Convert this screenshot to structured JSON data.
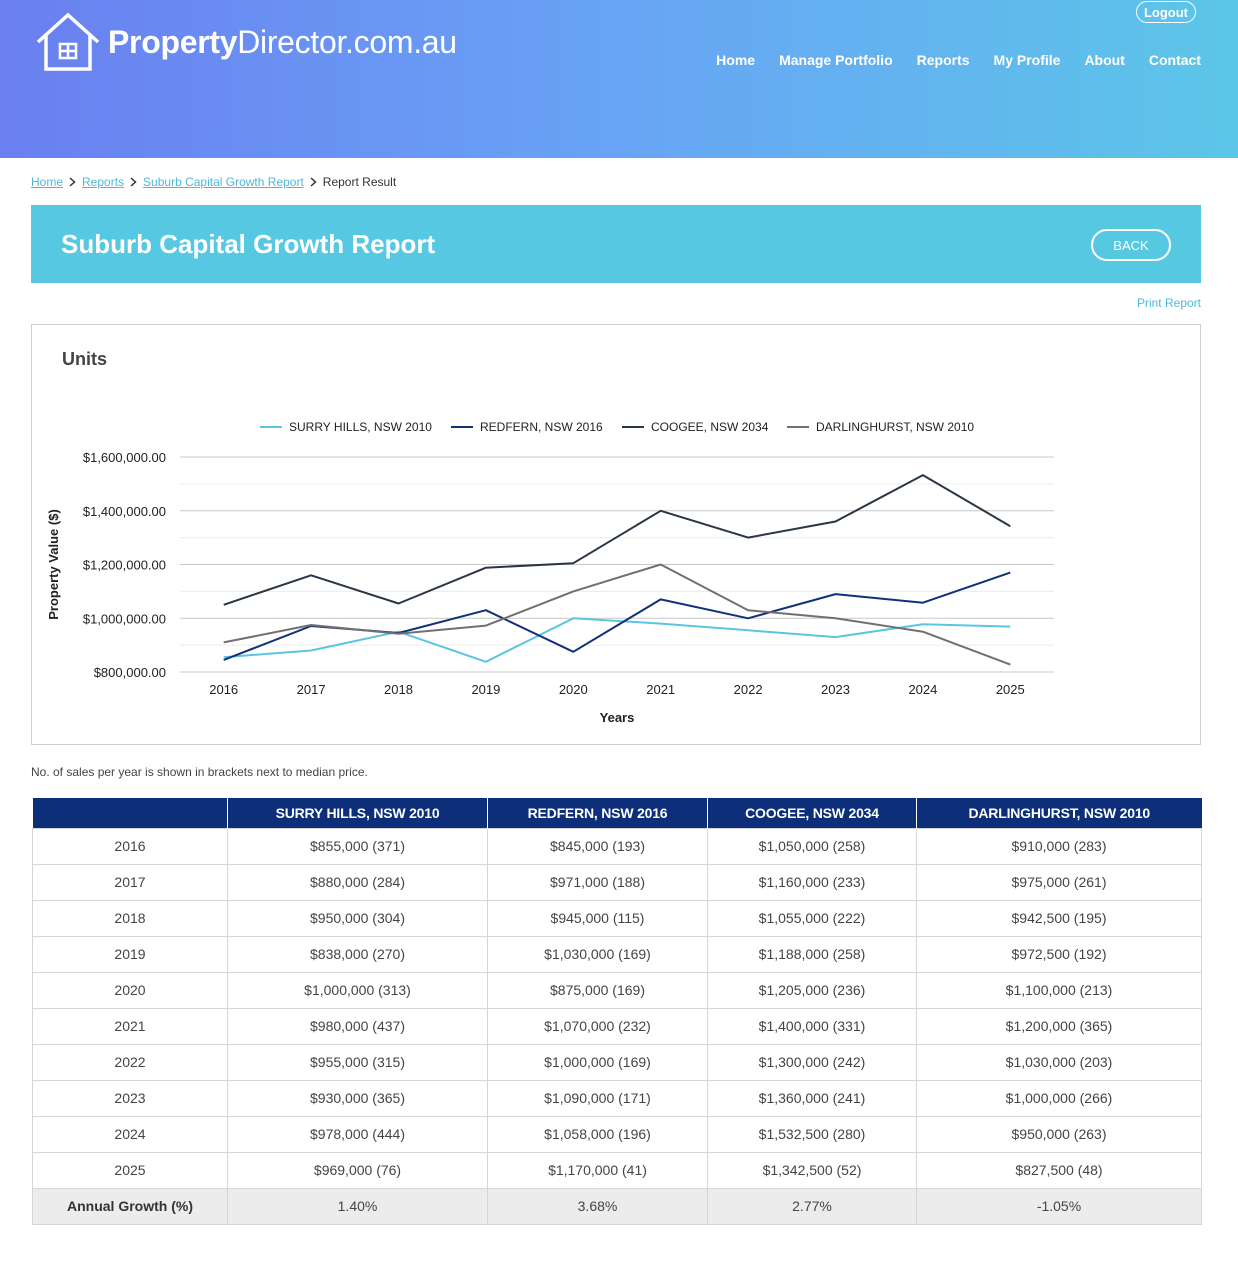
{
  "header": {
    "logo_bold": "Property",
    "logo_rest": "Director.com.au",
    "logout": "Logout",
    "nav": [
      "Home",
      "Manage Portfolio",
      "Reports",
      "My Profile",
      "About",
      "Contact"
    ]
  },
  "breadcrumb": {
    "items": [
      "Home",
      "Reports",
      "Suburb Capital Growth Report"
    ],
    "current": "Report Result"
  },
  "banner": {
    "title": "Suburb Capital Growth Report",
    "back": "BACK"
  },
  "print_report": "Print Report",
  "chart_section_title": "Units",
  "note": "No. of sales per year is shown in brackets next to median price.",
  "colors": {
    "surry": "#5bc5e0",
    "redfern": "#12307a",
    "coogee": "#2a3545",
    "darlinghurst": "#707070",
    "header_bg": "#0d2e78",
    "banner": "#56c8e2"
  },
  "chart_data": {
    "type": "line",
    "x": [
      2016,
      2017,
      2018,
      2019,
      2020,
      2021,
      2022,
      2023,
      2024,
      2025
    ],
    "xlabel": "Years",
    "ylabel": "Property Value ($)",
    "ylim": [
      800000,
      1600000
    ],
    "yticks": [
      "$1,600,000.00",
      "$1,400,000.00",
      "$1,200,000.00",
      "$1,000,000.00",
      "$800,000.00"
    ],
    "grid": true,
    "legend": "top",
    "series": [
      {
        "name": "SURRY HILLS, NSW 2010",
        "color": "#5bc5e0",
        "values": [
          855000,
          880000,
          950000,
          838000,
          1000000,
          980000,
          955000,
          930000,
          978000,
          969000
        ]
      },
      {
        "name": "REDFERN, NSW 2016",
        "color": "#12307a",
        "values": [
          845000,
          971000,
          945000,
          1030000,
          875000,
          1070000,
          1000000,
          1090000,
          1058000,
          1170000
        ]
      },
      {
        "name": "COOGEE, NSW 2034",
        "color": "#2a3545",
        "values": [
          1050000,
          1160000,
          1055000,
          1188000,
          1205000,
          1400000,
          1300000,
          1360000,
          1532500,
          1342500
        ]
      },
      {
        "name": "DARLINGHURST, NSW 2010",
        "color": "#707070",
        "values": [
          910000,
          975000,
          942500,
          972500,
          1100000,
          1200000,
          1030000,
          1000000,
          950000,
          827500
        ]
      }
    ]
  },
  "table": {
    "headers": [
      "",
      "SURRY HILLS, NSW 2010",
      "REDFERN, NSW 2016",
      "COOGEE, NSW 2034",
      "DARLINGHURST, NSW 2010"
    ],
    "rows": [
      [
        "2016",
        "$855,000 (371)",
        "$845,000 (193)",
        "$1,050,000 (258)",
        "$910,000 (283)"
      ],
      [
        "2017",
        "$880,000 (284)",
        "$971,000 (188)",
        "$1,160,000 (233)",
        "$975,000 (261)"
      ],
      [
        "2018",
        "$950,000 (304)",
        "$945,000 (115)",
        "$1,055,000 (222)",
        "$942,500 (195)"
      ],
      [
        "2019",
        "$838,000 (270)",
        "$1,030,000 (169)",
        "$1,188,000 (258)",
        "$972,500 (192)"
      ],
      [
        "2020",
        "$1,000,000 (313)",
        "$875,000 (169)",
        "$1,205,000 (236)",
        "$1,100,000 (213)"
      ],
      [
        "2021",
        "$980,000 (437)",
        "$1,070,000 (232)",
        "$1,400,000 (331)",
        "$1,200,000 (365)"
      ],
      [
        "2022",
        "$955,000 (315)",
        "$1,000,000 (169)",
        "$1,300,000 (242)",
        "$1,030,000 (203)"
      ],
      [
        "2023",
        "$930,000 (365)",
        "$1,090,000 (171)",
        "$1,360,000 (241)",
        "$1,000,000 (266)"
      ],
      [
        "2024",
        "$978,000 (444)",
        "$1,058,000 (196)",
        "$1,532,500 (280)",
        "$950,000 (263)"
      ],
      [
        "2025",
        "$969,000 (76)",
        "$1,170,000 (41)",
        "$1,342,500 (52)",
        "$827,500 (48)"
      ]
    ],
    "growth": [
      "Annual Growth (%)",
      "1.40%",
      "3.68%",
      "2.77%",
      "-1.05%"
    ]
  }
}
